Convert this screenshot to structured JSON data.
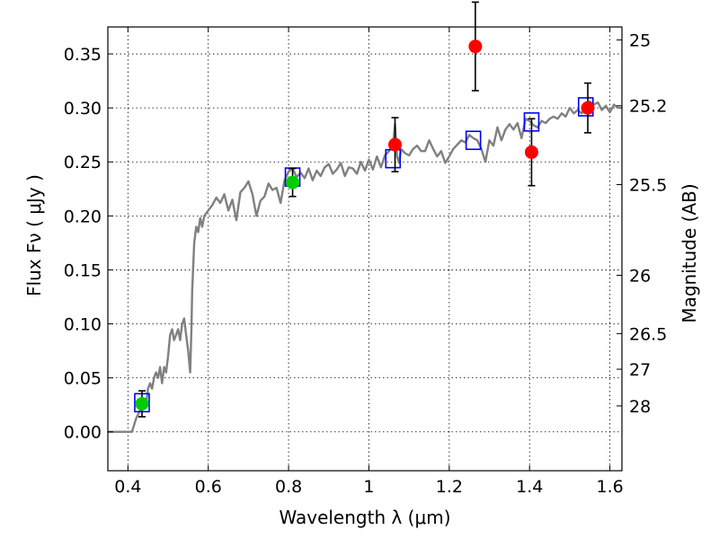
{
  "chart_data": {
    "type": "scatter",
    "xlabel": "Wavelength  λ (μm)",
    "ylabel": "Flux  Fν  ( μJy )",
    "y2label": "Magnitude (AB)",
    "xlim": [
      0.35,
      1.63
    ],
    "ylim": [
      -0.036,
      0.375
    ],
    "grid": true,
    "x_ticks": [
      {
        "value": 0.4,
        "label": "0.4"
      },
      {
        "value": 0.6,
        "label": "0.6"
      },
      {
        "value": 0.8,
        "label": "0.8"
      },
      {
        "value": 1.0,
        "label": "1"
      },
      {
        "value": 1.2,
        "label": "1.2"
      },
      {
        "value": 1.4,
        "label": "1.4"
      },
      {
        "value": 1.6,
        "label": "1.6"
      }
    ],
    "y_ticks": [
      {
        "value": 0.0,
        "label": "0.00"
      },
      {
        "value": 0.05,
        "label": "0.05"
      },
      {
        "value": 0.1,
        "label": "0.10"
      },
      {
        "value": 0.15,
        "label": "0.15"
      },
      {
        "value": 0.2,
        "label": "0.20"
      },
      {
        "value": 0.25,
        "label": "0.25"
      },
      {
        "value": 0.3,
        "label": "0.30"
      },
      {
        "value": 0.35,
        "label": "0.35"
      }
    ],
    "y2_ticks": [
      {
        "flux": 0.363,
        "label": "25"
      },
      {
        "flux": 0.302,
        "label": "25.2"
      },
      {
        "flux": 0.229,
        "label": "25.5"
      },
      {
        "flux": 0.145,
        "label": "26"
      },
      {
        "flux": 0.091,
        "label": "26.5"
      },
      {
        "flux": 0.058,
        "label": "27"
      },
      {
        "flux": 0.024,
        "label": "28"
      }
    ],
    "series": [
      {
        "kind": "model-sed-line",
        "color": "#808080",
        "x": [
          0.35,
          0.41,
          0.42,
          0.43,
          0.44,
          0.445,
          0.45,
          0.455,
          0.46,
          0.465,
          0.47,
          0.475,
          0.48,
          0.485,
          0.49,
          0.495,
          0.5,
          0.505,
          0.51,
          0.515,
          0.52,
          0.525,
          0.53,
          0.535,
          0.54,
          0.545,
          0.55,
          0.555,
          0.558,
          0.56,
          0.565,
          0.57,
          0.575,
          0.58,
          0.585,
          0.59,
          0.6,
          0.61,
          0.62,
          0.63,
          0.64,
          0.65,
          0.66,
          0.67,
          0.68,
          0.69,
          0.7,
          0.71,
          0.72,
          0.73,
          0.74,
          0.75,
          0.76,
          0.77,
          0.78,
          0.79,
          0.8,
          0.81,
          0.82,
          0.83,
          0.84,
          0.85,
          0.86,
          0.87,
          0.88,
          0.89,
          0.9,
          0.91,
          0.92,
          0.93,
          0.94,
          0.95,
          0.96,
          0.97,
          0.98,
          0.99,
          1.0,
          1.01,
          1.02,
          1.03,
          1.04,
          1.05,
          1.06,
          1.065,
          1.07,
          1.075,
          1.08,
          1.09,
          1.1,
          1.11,
          1.12,
          1.13,
          1.14,
          1.15,
          1.16,
          1.17,
          1.18,
          1.19,
          1.2,
          1.21,
          1.22,
          1.23,
          1.24,
          1.25,
          1.26,
          1.27,
          1.28,
          1.29,
          1.3,
          1.31,
          1.32,
          1.33,
          1.34,
          1.35,
          1.36,
          1.37,
          1.38,
          1.39,
          1.4,
          1.41,
          1.42,
          1.43,
          1.44,
          1.45,
          1.46,
          1.47,
          1.48,
          1.49,
          1.5,
          1.51,
          1.52,
          1.53,
          1.54,
          1.55,
          1.56,
          1.57,
          1.58,
          1.59,
          1.6,
          1.61,
          1.62,
          1.63
        ],
        "y": [
          0.0,
          0.0,
          0.012,
          0.02,
          0.03,
          0.025,
          0.04,
          0.045,
          0.04,
          0.05,
          0.055,
          0.05,
          0.06,
          0.045,
          0.06,
          0.055,
          0.07,
          0.09,
          0.095,
          0.085,
          0.09,
          0.095,
          0.085,
          0.1,
          0.105,
          0.09,
          0.075,
          0.055,
          0.095,
          0.13,
          0.175,
          0.19,
          0.185,
          0.198,
          0.19,
          0.2,
          0.205,
          0.21,
          0.217,
          0.212,
          0.22,
          0.205,
          0.215,
          0.196,
          0.222,
          0.226,
          0.232,
          0.22,
          0.2,
          0.214,
          0.218,
          0.23,
          0.224,
          0.226,
          0.212,
          0.233,
          0.241,
          0.244,
          0.236,
          0.24,
          0.235,
          0.244,
          0.233,
          0.242,
          0.237,
          0.245,
          0.248,
          0.239,
          0.243,
          0.249,
          0.237,
          0.245,
          0.244,
          0.239,
          0.25,
          0.242,
          0.252,
          0.243,
          0.255,
          0.245,
          0.256,
          0.26,
          0.265,
          0.285,
          0.255,
          0.249,
          0.262,
          0.258,
          0.256,
          0.262,
          0.265,
          0.26,
          0.26,
          0.27,
          0.262,
          0.255,
          0.26,
          0.249,
          0.255,
          0.262,
          0.266,
          0.27,
          0.268,
          0.275,
          0.272,
          0.27,
          0.262,
          0.25,
          0.27,
          0.265,
          0.282,
          0.27,
          0.28,
          0.285,
          0.28,
          0.286,
          0.272,
          0.29,
          0.288,
          0.284,
          0.282,
          0.288,
          0.286,
          0.29,
          0.292,
          0.29,
          0.295,
          0.292,
          0.3,
          0.295,
          0.298,
          0.295,
          0.3,
          0.306,
          0.303,
          0.305,
          0.298,
          0.302,
          0.296,
          0.303,
          0.3,
          0.3
        ]
      },
      {
        "name": "model-bandpass-fluxes",
        "kind": "open-square",
        "color": "#0000ff",
        "points": [
          [
            0.435,
            0.027
          ],
          [
            0.81,
            0.236
          ],
          [
            1.06,
            0.253
          ],
          [
            1.26,
            0.27
          ],
          [
            1.405,
            0.287
          ],
          [
            1.54,
            0.301
          ]
        ]
      },
      {
        "name": "measured-green",
        "kind": "filled-circle",
        "color": "#00cc00",
        "points": [
          {
            "x": 0.435,
            "y": 0.026,
            "err": 0.012
          },
          {
            "x": 0.81,
            "y": 0.231,
            "err": 0.013
          }
        ]
      },
      {
        "name": "measured-red",
        "kind": "filled-circle",
        "color": "#ff0000",
        "points": [
          {
            "x": 1.065,
            "y": 0.266,
            "err": 0.025
          },
          {
            "x": 1.265,
            "y": 0.357,
            "err": 0.041
          },
          {
            "x": 1.405,
            "y": 0.259,
            "err": 0.031
          },
          {
            "x": 1.545,
            "y": 0.3,
            "err": 0.023
          }
        ]
      }
    ]
  }
}
